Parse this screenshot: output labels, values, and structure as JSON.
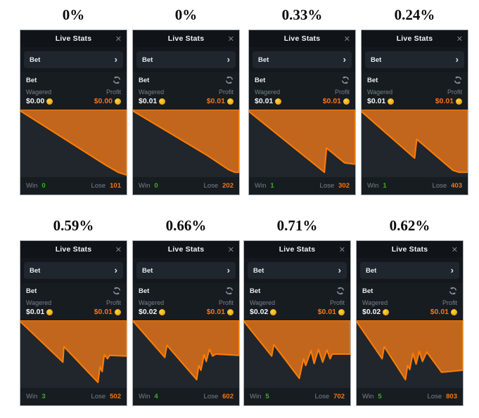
{
  "labels": {
    "widget_title": "Live Stats",
    "bet_selector": "Bet",
    "bet_tab": "Bet",
    "wagered": "Wagered",
    "profit": "Profit",
    "win": "Win",
    "lose": "Lose",
    "close_icon": "✕",
    "chevron_icon": "›"
  },
  "colors": {
    "accent_orange": "#f97316",
    "chart_fill": "#c2661d",
    "chart_stroke": "#ff7d05",
    "chart_bg": "#21262d",
    "win_green": "#3fae2a",
    "lose_orange": "#f9760c",
    "coin_gold": "#f4ad12",
    "panel_bg": "#14181d"
  },
  "panels": [
    {
      "pct": "0%",
      "wagered": "$0.00",
      "profit": "$0.00",
      "win": "0",
      "lose": "101",
      "chart": [
        [
          0,
          2
        ],
        [
          80,
          82
        ],
        [
          92,
          93
        ],
        [
          100,
          97
        ]
      ]
    },
    {
      "pct": "0%",
      "wagered": "$0.01",
      "profit": "$0.01",
      "win": "0",
      "lose": "202",
      "chart": [
        [
          0,
          2
        ],
        [
          70,
          68
        ],
        [
          90,
          89
        ],
        [
          96,
          93
        ],
        [
          100,
          93
        ]
      ]
    },
    {
      "pct": "0.33%",
      "wagered": "$0.01",
      "profit": "$0.01",
      "win": "1",
      "lose": "302",
      "chart": [
        [
          0,
          3
        ],
        [
          71,
          93
        ],
        [
          73,
          57
        ],
        [
          90,
          79
        ],
        [
          100,
          81
        ]
      ]
    },
    {
      "pct": "0.24%",
      "wagered": "$0.01",
      "profit": "$0.01",
      "win": "1",
      "lose": "403",
      "chart": [
        [
          0,
          3
        ],
        [
          50,
          72
        ],
        [
          52,
          44
        ],
        [
          86,
          90
        ],
        [
          92,
          93
        ],
        [
          100,
          93
        ]
      ]
    },
    {
      "pct": "0.59%",
      "wagered": "$0.01",
      "profit": "$0.01",
      "win": "3",
      "lose": "502",
      "chart": [
        [
          0,
          2
        ],
        [
          40,
          62
        ],
        [
          41,
          39
        ],
        [
          73,
          92
        ],
        [
          75,
          69
        ],
        [
          77,
          76
        ],
        [
          79,
          51
        ],
        [
          82,
          57
        ],
        [
          84,
          52
        ],
        [
          100,
          53
        ]
      ]
    },
    {
      "pct": "0.66%",
      "wagered": "$0.02",
      "profit": "$0.01",
      "win": "4",
      "lose": "602",
      "chart": [
        [
          0,
          1
        ],
        [
          30,
          55
        ],
        [
          32,
          37
        ],
        [
          60,
          88
        ],
        [
          62,
          67
        ],
        [
          64,
          74
        ],
        [
          67,
          51
        ],
        [
          69,
          61
        ],
        [
          72,
          43
        ],
        [
          75,
          53
        ],
        [
          78,
          50
        ],
        [
          100,
          52
        ]
      ]
    },
    {
      "pct": "0.71%",
      "wagered": "$0.02",
      "profit": "$0.01",
      "win": "5",
      "lose": "702",
      "chart": [
        [
          0,
          2
        ],
        [
          26,
          53
        ],
        [
          28,
          36
        ],
        [
          52,
          86
        ],
        [
          56,
          57
        ],
        [
          58,
          67
        ],
        [
          63,
          45
        ],
        [
          66,
          64
        ],
        [
          70,
          43
        ],
        [
          74,
          62
        ],
        [
          78,
          44
        ],
        [
          81,
          57
        ],
        [
          83,
          50
        ],
        [
          100,
          50
        ]
      ]
    },
    {
      "pct": "0.62%",
      "wagered": "$0.02",
      "profit": "$0.01",
      "win": "5",
      "lose": "803",
      "chart": [
        [
          0,
          2
        ],
        [
          24,
          57
        ],
        [
          26,
          39
        ],
        [
          46,
          88
        ],
        [
          48,
          67
        ],
        [
          50,
          73
        ],
        [
          53,
          49
        ],
        [
          56,
          65
        ],
        [
          59,
          46
        ],
        [
          62,
          61
        ],
        [
          66,
          47
        ],
        [
          80,
          77
        ],
        [
          100,
          74
        ]
      ]
    }
  ]
}
